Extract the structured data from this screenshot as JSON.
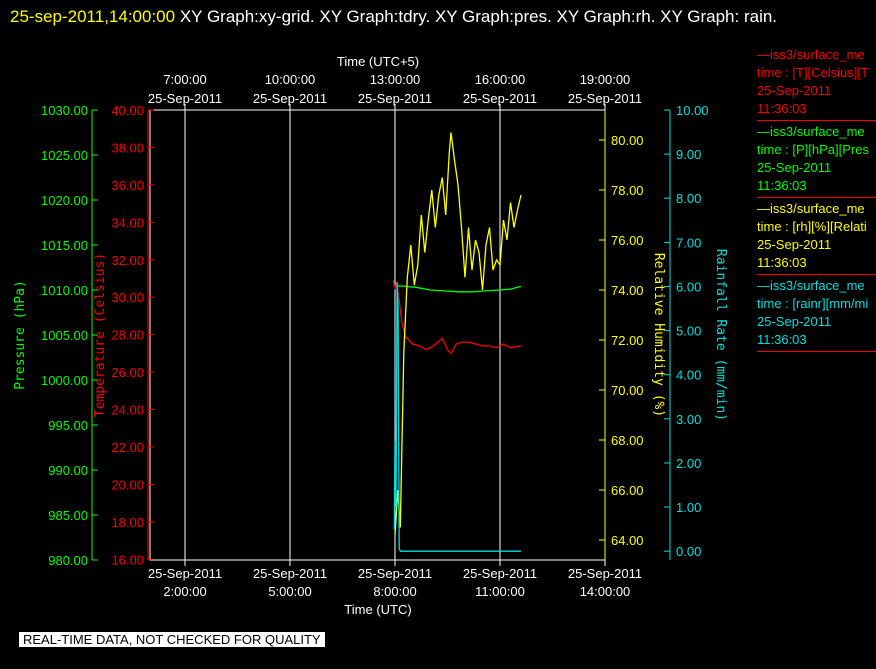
{
  "header": {
    "datetime": "25-sep-2011,14:00:00",
    "graph_list": "XY Graph:xy-grid.  XY Graph:tdry.  XY Graph:pres.  XY Graph:rh.  XY Graph: rain."
  },
  "disclaimer": "REAL-TIME DATA, NOT CHECKED FOR QUALITY",
  "legend": [
    {
      "name": "—iss3/surface_me",
      "units": "time : [T][Celsius][T",
      "date": "25-Sep-2011",
      "time": "11:36:03",
      "color": "#ff0000"
    },
    {
      "name": "—iss3/surface_me",
      "units": "time : [P][hPa][Pres",
      "date": "25-Sep-2011",
      "time": "11:36:03",
      "color": "#00ff00"
    },
    {
      "name": "—iss3/surface_me",
      "units": "time : [rh][%][Relati",
      "date": "25-Sep-2011",
      "time": "11:36:03",
      "color": "#ffff00"
    },
    {
      "name": "—iss3/surface_me",
      "units": "time : [rainr][mm/mi",
      "date": "25-Sep-2011",
      "time": "11:36:03",
      "color": "#00e0e0"
    }
  ],
  "chart_data": {
    "type": "line",
    "x_top_label": "Time (UTC+5)",
    "x_bottom_label": "Time (UTC)",
    "x_top_ticks": [
      {
        "time": "7:00:00",
        "date": "25-Sep-2011"
      },
      {
        "time": "10:00:00",
        "date": "25-Sep-2011"
      },
      {
        "time": "13:00:00",
        "date": "25-Sep-2011"
      },
      {
        "time": "16:00:00",
        "date": "25-Sep-2011"
      },
      {
        "time": "19:00:00",
        "date": "25-Sep-2011"
      }
    ],
    "x_bottom_ticks": [
      {
        "date": "25-Sep-2011",
        "time": "2:00:00"
      },
      {
        "date": "25-Sep-2011",
        "time": "5:00:00"
      },
      {
        "date": "25-Sep-2011",
        "time": "8:00:00"
      },
      {
        "date": "25-Sep-2011",
        "time": "11:00:00"
      },
      {
        "date": "25-Sep-2011",
        "time": "14:00:00"
      }
    ],
    "x_range_utc_hours": [
      1,
      14
    ],
    "grid": "vertical",
    "legend_position": "right",
    "axes": [
      {
        "id": "pres",
        "label": "Pressure (hPa)",
        "color": "#00ff00",
        "range": [
          980,
          1030
        ],
        "ticks": [
          "980.00",
          "985.00",
          "990.00",
          "995.00",
          "1000.00",
          "1005.00",
          "1010.00",
          "1015.00",
          "1020.00",
          "1025.00",
          "1030.00"
        ]
      },
      {
        "id": "temp",
        "label": "Temperature (Celsius)",
        "color": "#ff0000",
        "range": [
          15,
          40
        ],
        "ticks": [
          "16.00",
          "18.00",
          "20.00",
          "22.00",
          "24.00",
          "26.00",
          "28.00",
          "30.00",
          "32.00",
          "34.00",
          "36.00",
          "38.00",
          "40.00"
        ]
      },
      {
        "id": "rh",
        "label": "Relative Humidity (%)",
        "color": "#ffff00",
        "range": [
          63.2,
          81.2
        ],
        "ticks": [
          "64.00",
          "66.00",
          "68.00",
          "70.00",
          "72.00",
          "74.00",
          "76.00",
          "78.00",
          "80.00"
        ]
      },
      {
        "id": "rain",
        "label": "Rainfall Rate (mm/min)",
        "color": "#00e0e0",
        "range": [
          -0.2,
          10
        ],
        "ticks": [
          "0.00",
          "1.00",
          "2.00",
          "3.00",
          "4.00",
          "5.00",
          "6.00",
          "7.00",
          "8.00",
          "9.00",
          "10.00"
        ]
      }
    ],
    "series": [
      {
        "axis": "pres",
        "color": "#00ff00",
        "x": [
          8.0,
          8.3,
          8.6,
          9.0,
          9.4,
          9.8,
          10.2,
          10.6,
          11.0,
          11.3,
          11.6
        ],
        "y": [
          1010.5,
          1010.4,
          1010.3,
          1010.0,
          1009.9,
          1009.8,
          1009.8,
          1009.9,
          1010.0,
          1010.1,
          1010.4
        ]
      },
      {
        "axis": "temp",
        "color": "#ff0000",
        "x": [
          7.95,
          8.0,
          8.05,
          8.12,
          8.2,
          8.3,
          8.5,
          8.7,
          8.9,
          9.1,
          9.35,
          9.5,
          9.6,
          9.75,
          9.9,
          10.1,
          10.3,
          10.5,
          10.7,
          10.9,
          11.1,
          11.3,
          11.6
        ],
        "y": [
          30.9,
          30.5,
          30.8,
          29.8,
          28.6,
          27.9,
          27.5,
          27.4,
          27.2,
          27.4,
          27.8,
          27.2,
          27.0,
          27.5,
          27.6,
          27.6,
          27.5,
          27.4,
          27.4,
          27.3,
          27.5,
          27.3,
          27.4
        ]
      },
      {
        "axis": "rh",
        "color": "#ffff00",
        "x": [
          8.0,
          8.08,
          8.15,
          8.25,
          8.35,
          8.45,
          8.55,
          8.65,
          8.75,
          8.85,
          8.95,
          9.05,
          9.15,
          9.25,
          9.35,
          9.45,
          9.55,
          9.6,
          9.7,
          9.8,
          9.9,
          10.0,
          10.1,
          10.2,
          10.3,
          10.4,
          10.5,
          10.6,
          10.7,
          10.8,
          10.9,
          11.0,
          11.1,
          11.2,
          11.3,
          11.4,
          11.5,
          11.6
        ],
        "y": [
          64.2,
          66.0,
          64.5,
          71.5,
          74.5,
          75.8,
          74.2,
          75.0,
          77.0,
          75.5,
          76.8,
          78.0,
          76.5,
          77.8,
          78.5,
          77.0,
          79.5,
          80.3,
          79.2,
          78.2,
          76.5,
          74.5,
          76.5,
          74.8,
          76.0,
          75.5,
          74.0,
          75.8,
          76.5,
          74.8,
          75.2,
          75.0,
          76.8,
          76.0,
          77.5,
          76.5,
          77.2,
          77.8
        ]
      },
      {
        "axis": "rain",
        "color": "#00e0e0",
        "x": [
          7.98,
          8.0,
          8.03,
          8.06,
          8.09,
          8.12,
          8.16,
          8.3,
          11.6
        ],
        "y": [
          0.5,
          2.5,
          1.0,
          6.1,
          5.5,
          0.05,
          0.0,
          0.0,
          0.0
        ]
      }
    ]
  }
}
